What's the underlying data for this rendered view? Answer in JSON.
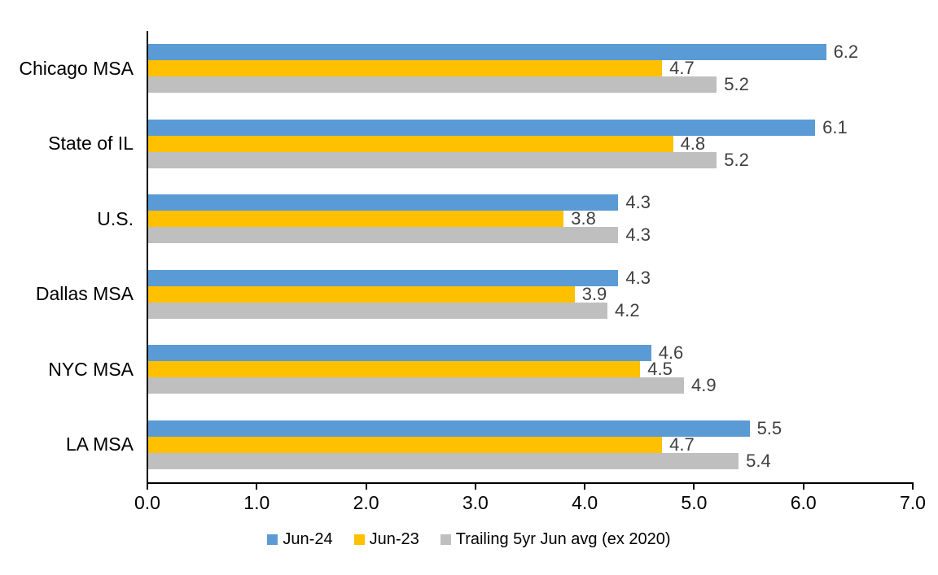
{
  "chart_data": {
    "type": "bar",
    "orientation": "horizontal",
    "categories": [
      "Chicago MSA",
      "State of IL",
      "U.S.",
      "Dallas MSA",
      "NYC MSA",
      "LA MSA"
    ],
    "series": [
      {
        "name": "Jun-24",
        "color": "#5B9BD5",
        "values": [
          6.2,
          6.1,
          4.3,
          4.3,
          4.6,
          5.5
        ]
      },
      {
        "name": "Jun-23",
        "color": "#FFC000",
        "values": [
          4.7,
          4.8,
          3.8,
          3.9,
          4.5,
          4.7
        ]
      },
      {
        "name": "Trailing 5yr Jun avg (ex 2020)",
        "color": "#BFBFBF",
        "values": [
          5.2,
          5.2,
          4.3,
          4.2,
          4.9,
          5.4
        ]
      }
    ],
    "xlim": [
      0.0,
      7.0
    ],
    "x_tick_labels": [
      "0.0",
      "1.0",
      "2.0",
      "3.0",
      "4.0",
      "5.0",
      "6.0",
      "7.0"
    ],
    "grid": false,
    "legend_position": "bottom",
    "data_labels": true,
    "value_label_color": "#404040",
    "axis_color": "#000000"
  }
}
